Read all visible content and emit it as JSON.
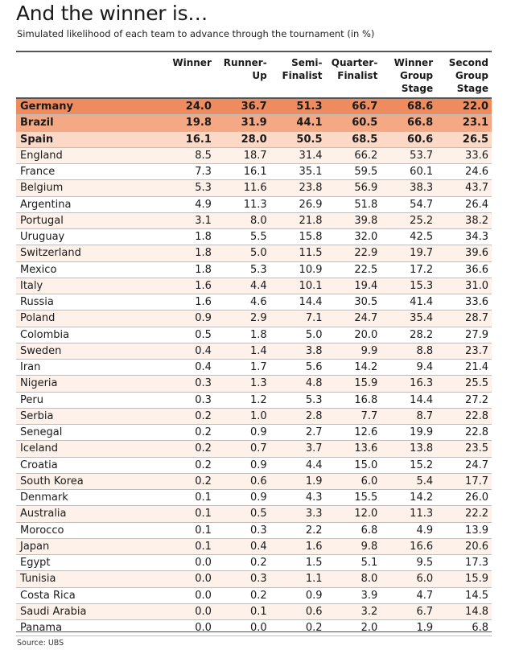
{
  "title": "And the winner is…",
  "subtitle": "Simulated likelihood of each team to advance through the tournament (in %)",
  "source": "Source: UBS",
  "colors": {
    "first": "#ef8c5f",
    "second": "#f4a883",
    "third": "#fbd9c6",
    "tint": "#fdf1ea"
  },
  "chart_data": {
    "type": "table",
    "title": "And the winner is…",
    "subtitle": "Simulated likelihood of each team to advance through the tournament (in %)",
    "columns": [
      {
        "key": "winner",
        "label": "Winner"
      },
      {
        "key": "runner_up",
        "label": "Runner-Up"
      },
      {
        "key": "semi",
        "label": "Semi-\nFinalist"
      },
      {
        "key": "quarter",
        "label": "Quarter-\nFinalist"
      },
      {
        "key": "group_winner",
        "label": "Winner\nGroup\nStage"
      },
      {
        "key": "group_second",
        "label": "Second\nGroup\nStage"
      }
    ],
    "rows": [
      {
        "team": "Germany",
        "values": [
          "24.0",
          "36.7",
          "51.3",
          "66.7",
          "68.6",
          "22.0"
        ],
        "highlight": "first"
      },
      {
        "team": "Brazil",
        "values": [
          "19.8",
          "31.9",
          "44.1",
          "60.5",
          "66.8",
          "23.1"
        ],
        "highlight": "second"
      },
      {
        "team": "Spain",
        "values": [
          "16.1",
          "28.0",
          "50.5",
          "68.5",
          "60.6",
          "26.5"
        ],
        "highlight": "third"
      },
      {
        "team": "England",
        "values": [
          "8.5",
          "18.7",
          "31.4",
          "66.2",
          "53.7",
          "33.6"
        ],
        "highlight": "tint"
      },
      {
        "team": "France",
        "values": [
          "7.3",
          "16.1",
          "35.1",
          "59.5",
          "60.1",
          "24.6"
        ],
        "highlight": ""
      },
      {
        "team": "Belgium",
        "values": [
          "5.3",
          "11.6",
          "23.8",
          "56.9",
          "38.3",
          "43.7"
        ],
        "highlight": "tint"
      },
      {
        "team": "Argentina",
        "values": [
          "4.9",
          "11.3",
          "26.9",
          "51.8",
          "54.7",
          "26.4"
        ],
        "highlight": ""
      },
      {
        "team": "Portugal",
        "values": [
          "3.1",
          "8.0",
          "21.8",
          "39.8",
          "25.2",
          "38.2"
        ],
        "highlight": "tint"
      },
      {
        "team": "Uruguay",
        "values": [
          "1.8",
          "5.5",
          "15.8",
          "32.0",
          "42.5",
          "34.3"
        ],
        "highlight": ""
      },
      {
        "team": "Switzerland",
        "values": [
          "1.8",
          "5.0",
          "11.5",
          "22.9",
          "19.7",
          "39.6"
        ],
        "highlight": "tint"
      },
      {
        "team": "Mexico",
        "values": [
          "1.8",
          "5.3",
          "10.9",
          "22.5",
          "17.2",
          "36.6"
        ],
        "highlight": ""
      },
      {
        "team": "Italy",
        "values": [
          "1.6",
          "4.4",
          "10.1",
          "19.4",
          "15.3",
          "31.0"
        ],
        "highlight": "tint"
      },
      {
        "team": "Russia",
        "values": [
          "1.6",
          "4.6",
          "14.4",
          "30.5",
          "41.4",
          "33.6"
        ],
        "highlight": ""
      },
      {
        "team": "Poland",
        "values": [
          "0.9",
          "2.9",
          "7.1",
          "24.7",
          "35.4",
          "28.7"
        ],
        "highlight": "tint"
      },
      {
        "team": "Colombia",
        "values": [
          "0.5",
          "1.8",
          "5.0",
          "20.0",
          "28.2",
          "27.9"
        ],
        "highlight": ""
      },
      {
        "team": "Sweden",
        "values": [
          "0.4",
          "1.4",
          "3.8",
          "9.9",
          "8.8",
          "23.7"
        ],
        "highlight": "tint"
      },
      {
        "team": "Iran",
        "values": [
          "0.4",
          "1.7",
          "5.6",
          "14.2",
          "9.4",
          "21.4"
        ],
        "highlight": ""
      },
      {
        "team": "Nigeria",
        "values": [
          "0.3",
          "1.3",
          "4.8",
          "15.9",
          "16.3",
          "25.5"
        ],
        "highlight": "tint"
      },
      {
        "team": "Peru",
        "values": [
          "0.3",
          "1.2",
          "5.3",
          "16.8",
          "14.4",
          "27.2"
        ],
        "highlight": ""
      },
      {
        "team": "Serbia",
        "values": [
          "0.2",
          "1.0",
          "2.8",
          "7.7",
          "8.7",
          "22.8"
        ],
        "highlight": "tint"
      },
      {
        "team": "Senegal",
        "values": [
          "0.2",
          "0.9",
          "2.7",
          "12.6",
          "19.9",
          "22.8"
        ],
        "highlight": ""
      },
      {
        "team": "Iceland",
        "values": [
          "0.2",
          "0.7",
          "3.7",
          "13.6",
          "13.8",
          "23.5"
        ],
        "highlight": "tint"
      },
      {
        "team": "Croatia",
        "values": [
          "0.2",
          "0.9",
          "4.4",
          "15.0",
          "15.2",
          "24.7"
        ],
        "highlight": ""
      },
      {
        "team": "South Korea",
        "values": [
          "0.2",
          "0.6",
          "1.9",
          "6.0",
          "5.4",
          "17.7"
        ],
        "highlight": "tint"
      },
      {
        "team": "Denmark",
        "values": [
          "0.1",
          "0.9",
          "4.3",
          "15.5",
          "14.2",
          "26.0"
        ],
        "highlight": ""
      },
      {
        "team": "Australia",
        "values": [
          "0.1",
          "0.5",
          "3.3",
          "12.0",
          "11.3",
          "22.2"
        ],
        "highlight": "tint"
      },
      {
        "team": "Morocco",
        "values": [
          "0.1",
          "0.3",
          "2.2",
          "6.8",
          "4.9",
          "13.9"
        ],
        "highlight": ""
      },
      {
        "team": "Japan",
        "values": [
          "0.1",
          "0.4",
          "1.6",
          "9.8",
          "16.6",
          "20.6"
        ],
        "highlight": "tint"
      },
      {
        "team": "Egypt",
        "values": [
          "0.0",
          "0.2",
          "1.5",
          "5.1",
          "9.5",
          "17.3"
        ],
        "highlight": ""
      },
      {
        "team": "Tunisia",
        "values": [
          "0.0",
          "0.3",
          "1.1",
          "8.0",
          "6.0",
          "15.9"
        ],
        "highlight": "tint"
      },
      {
        "team": "Costa Rica",
        "values": [
          "0.0",
          "0.2",
          "0.9",
          "3.9",
          "4.7",
          "14.5"
        ],
        "highlight": ""
      },
      {
        "team": "Saudi Arabia",
        "values": [
          "0.0",
          "0.1",
          "0.6",
          "3.2",
          "6.7",
          "14.8"
        ],
        "highlight": "tint"
      },
      {
        "team": "Panama",
        "values": [
          "0.0",
          "0.0",
          "0.2",
          "2.0",
          "1.9",
          "6.8"
        ],
        "highlight": ""
      }
    ]
  }
}
